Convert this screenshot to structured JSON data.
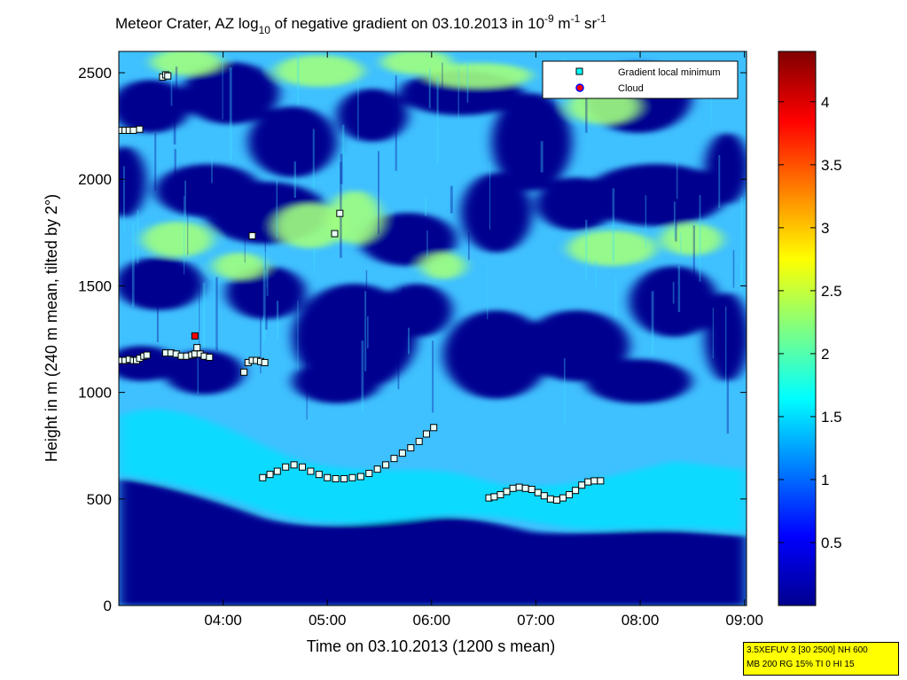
{
  "chart_data": {
    "type": "heatmap",
    "title": {
      "prefix": "Meteor Crater, AZ log",
      "sub": "10",
      "mid": " of negative gradient on 03.10.2013 in 10",
      "sup1": "-9",
      "mid2": " m",
      "sup2": "-1",
      "mid3": " sr",
      "sup3": "-1"
    },
    "xlabel": "Time on 03.10.2013 (1200 s mean)",
    "ylabel": "Height in m (240 m mean, tilted by 2°)",
    "x_ticks": [
      {
        "value": 4.0,
        "label": "04:00"
      },
      {
        "value": 5.0,
        "label": "05:00"
      },
      {
        "value": 6.0,
        "label": "06:00"
      },
      {
        "value": 7.0,
        "label": "07:00"
      },
      {
        "value": 8.0,
        "label": "08:00"
      },
      {
        "value": 9.0,
        "label": "09:00"
      }
    ],
    "xlim": [
      3.0,
      9.02
    ],
    "ylim": [
      0,
      2600
    ],
    "y_ticks": [
      0,
      500,
      1000,
      1500,
      2000,
      2500
    ],
    "colorbar": {
      "range": [
        0,
        4.4
      ],
      "ticks": [
        0.5,
        1,
        1.5,
        2,
        2.5,
        3,
        3.5,
        4
      ],
      "colors": [
        "#00008f",
        "#0000ff",
        "#0080ff",
        "#00ffff",
        "#80ff80",
        "#ffff00",
        "#ff8000",
        "#ff0000",
        "#800000"
      ]
    },
    "legend": {
      "placement": "top-right",
      "entries": [
        {
          "label": "Gradient local minimum",
          "marker": "square",
          "color": "#00ffff"
        },
        {
          "label": "Cloud",
          "marker": "circle",
          "color": "#ff0000",
          "edge": "#0000ff"
        }
      ]
    },
    "series": [
      {
        "name": "Gradient local minimum",
        "points": [
          [
            3.02,
            2230
          ],
          [
            3.06,
            2230
          ],
          [
            3.1,
            2230
          ],
          [
            3.14,
            2230
          ],
          [
            3.2,
            2235
          ],
          [
            3.42,
            2480
          ],
          [
            3.45,
            2490
          ],
          [
            3.47,
            2485
          ],
          [
            4.28,
            1735
          ],
          [
            5.07,
            1745
          ],
          [
            5.12,
            1840
          ],
          [
            3.02,
            1150
          ],
          [
            3.06,
            1150
          ],
          [
            3.1,
            1155
          ],
          [
            3.14,
            1150
          ],
          [
            3.17,
            1150
          ],
          [
            3.2,
            1160
          ],
          [
            3.24,
            1170
          ],
          [
            3.27,
            1175
          ],
          [
            3.45,
            1185
          ],
          [
            3.5,
            1185
          ],
          [
            3.55,
            1180
          ],
          [
            3.6,
            1170
          ],
          [
            3.65,
            1170
          ],
          [
            3.7,
            1175
          ],
          [
            3.73,
            1180
          ],
          [
            3.75,
            1210
          ],
          [
            3.78,
            1180
          ],
          [
            3.82,
            1170
          ],
          [
            3.87,
            1165
          ],
          [
            4.2,
            1095
          ],
          [
            4.24,
            1140
          ],
          [
            4.28,
            1150
          ],
          [
            4.32,
            1150
          ],
          [
            4.36,
            1145
          ],
          [
            4.4,
            1140
          ],
          [
            4.38,
            600
          ],
          [
            4.45,
            615
          ],
          [
            4.52,
            630
          ],
          [
            4.6,
            650
          ],
          [
            4.68,
            660
          ],
          [
            4.76,
            650
          ],
          [
            4.84,
            630
          ],
          [
            4.92,
            615
          ],
          [
            5.0,
            600
          ],
          [
            5.08,
            595
          ],
          [
            5.16,
            595
          ],
          [
            5.24,
            600
          ],
          [
            5.32,
            605
          ],
          [
            5.4,
            620
          ],
          [
            5.48,
            640
          ],
          [
            5.56,
            660
          ],
          [
            5.64,
            690
          ],
          [
            5.72,
            715
          ],
          [
            5.8,
            740
          ],
          [
            5.88,
            770
          ],
          [
            5.95,
            805
          ],
          [
            6.02,
            835
          ],
          [
            6.55,
            505
          ],
          [
            6.6,
            510
          ],
          [
            6.66,
            520
          ],
          [
            6.72,
            535
          ],
          [
            6.78,
            550
          ],
          [
            6.84,
            555
          ],
          [
            6.9,
            550
          ],
          [
            6.96,
            545
          ],
          [
            7.02,
            530
          ],
          [
            7.08,
            515
          ],
          [
            7.14,
            500
          ],
          [
            7.2,
            495
          ],
          [
            7.26,
            505
          ],
          [
            7.32,
            520
          ],
          [
            7.38,
            540
          ],
          [
            7.44,
            565
          ],
          [
            7.5,
            580
          ],
          [
            7.56,
            585
          ],
          [
            7.62,
            585
          ]
        ]
      },
      {
        "name": "Cloud",
        "points": [
          [
            3.73,
            1265
          ]
        ]
      }
    ]
  },
  "info_box": {
    "line1": "3.5XEFUV 3 [30 2500] NH 600",
    "line2": "MB 200 RG 15% TI 0 HI 15"
  }
}
